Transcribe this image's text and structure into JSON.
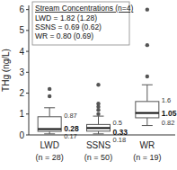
{
  "chart_data": {
    "type": "box",
    "y_label": "THg (ng/L)",
    "categories": [
      "LWD",
      "SSNS",
      "WR"
    ],
    "n_labels": [
      "(n = 28)",
      "(n = 50)",
      "(n = 19)"
    ],
    "boxes": [
      {
        "min": 0.05,
        "q1": 0.17,
        "median": 0.28,
        "q3": 0.87,
        "max": 1.3,
        "outliers": [
          1.85,
          2.2
        ]
      },
      {
        "min": 0.05,
        "q1": 0.18,
        "median": 0.33,
        "q3": 0.5,
        "max": 0.9,
        "outliers": [
          1.0,
          1.2,
          1.35,
          1.5,
          2.4
        ]
      },
      {
        "min": 0.45,
        "q1": 0.82,
        "median": 1.05,
        "q3": 1.6,
        "max": 2.4,
        "outliers": [
          2.8,
          4.3,
          6.0
        ]
      }
    ],
    "data_labels": true,
    "color": "#555555",
    "ylim": [
      0,
      6.2
    ],
    "yticks": [
      0,
      1,
      2,
      3,
      4,
      5,
      6
    ],
    "annotation": {
      "title": "Stream Concentrations (n=4)",
      "lines": [
        "LWD = 1.82 (1.28)",
        "SSNS = 0.69 (0.62)",
        "WR = 0.80 (0.69)"
      ]
    }
  }
}
